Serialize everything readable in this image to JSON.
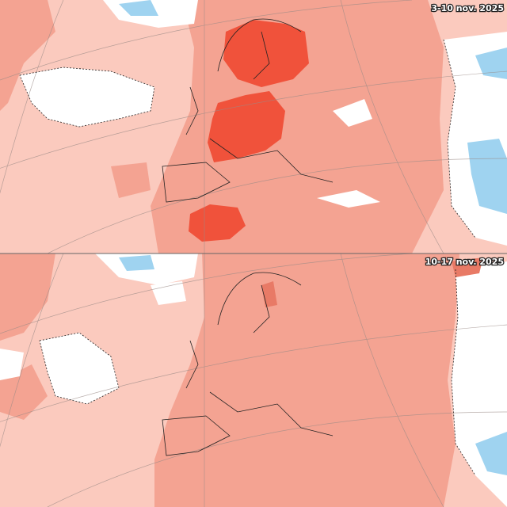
{
  "panels": [
    {
      "label": "3-10 nov. 2025"
    },
    {
      "label": "10-17 nov. 2025"
    }
  ]
}
